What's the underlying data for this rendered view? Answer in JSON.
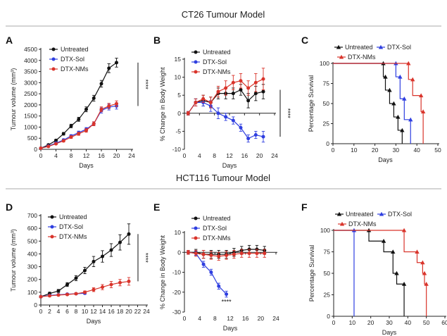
{
  "sections": [
    {
      "title": "CT26 Tumour Model"
    },
    {
      "title": "HCT116 Tumour Model"
    }
  ],
  "colors": {
    "untreated": "#111111",
    "dtx_sol": "#2f3fe0",
    "dtx_nms": "#d9342b",
    "axis": "#222222"
  },
  "chart_data": [
    {
      "panel": "A",
      "type": "line",
      "xlabel": "Days",
      "ylabel": "Tumour volume (mm³)",
      "xlim": [
        0,
        24
      ],
      "ylim": [
        0,
        4500
      ],
      "xticks": [
        "0",
        "4",
        "8",
        "12",
        "16",
        "20",
        "24"
      ],
      "yticks": [
        "0",
        "500",
        "1000",
        "1500",
        "2000",
        "2500",
        "3000",
        "3500",
        "4000",
        "4500"
      ],
      "x": [
        0,
        2,
        4,
        6,
        8,
        10,
        12,
        14,
        16,
        18,
        20
      ],
      "series": [
        {
          "name": "Untreated",
          "key": "untreated",
          "marker": "circle",
          "values": [
            50,
            200,
            400,
            700,
            1050,
            1350,
            1800,
            2300,
            2950,
            3650,
            3900
          ],
          "errors": [
            30,
            40,
            50,
            60,
            80,
            90,
            110,
            130,
            150,
            200,
            200
          ]
        },
        {
          "name": "DTX-Sol",
          "key": "dtx_sol",
          "marker": "circle",
          "values": [
            50,
            150,
            280,
            420,
            600,
            750,
            900,
            1150,
            1750,
            1900,
            1950
          ],
          "errors": [
            20,
            30,
            40,
            50,
            60,
            70,
            80,
            90,
            120,
            130,
            140
          ]
        },
        {
          "name": "DTX-NMs",
          "key": "dtx_nms",
          "marker": "circle",
          "values": [
            50,
            130,
            250,
            380,
            550,
            700,
            850,
            1150,
            1800,
            1950,
            2050
          ],
          "errors": [
            20,
            30,
            40,
            50,
            60,
            70,
            80,
            90,
            110,
            120,
            130
          ]
        }
      ],
      "significance": "****"
    },
    {
      "panel": "B",
      "type": "line",
      "xlabel": "Days",
      "ylabel": "% Change in Body Weight",
      "xlim": [
        0,
        24
      ],
      "ylim": [
        -10,
        15
      ],
      "xticks": [
        "0",
        "4",
        "8",
        "12",
        "16",
        "20",
        "24"
      ],
      "yticks": [
        "-10",
        "-5",
        "0",
        "5",
        "10",
        "15"
      ],
      "x": [
        1,
        3,
        5,
        7,
        9,
        11,
        13,
        15,
        17,
        19,
        21
      ],
      "series": [
        {
          "name": "Untreated",
          "key": "untreated",
          "marker": "circle",
          "values": [
            0,
            3,
            3.5,
            3,
            5.5,
            5.5,
            5.5,
            6.5,
            3.5,
            5.5,
            6
          ],
          "errors": [
            0.5,
            1,
            1.5,
            1.5,
            1.5,
            1.5,
            1.5,
            1.5,
            2,
            2,
            2
          ]
        },
        {
          "name": "DTX-Sol",
          "key": "dtx_sol",
          "marker": "circle",
          "values": [
            0,
            3,
            3,
            2,
            0,
            -1,
            -2,
            -4,
            -7,
            -6,
            -6.5
          ],
          "errors": [
            0.5,
            1,
            1,
            1.5,
            1.5,
            1,
            1,
            1,
            1,
            1,
            1.5
          ]
        },
        {
          "name": "DTX-NMs",
          "key": "dtx_nms",
          "marker": "circle",
          "values": [
            0,
            3,
            4,
            3,
            6,
            7,
            8.5,
            9,
            7,
            8.5,
            9.5
          ],
          "errors": [
            0.5,
            1,
            1,
            1.5,
            1.5,
            2,
            2,
            2,
            2,
            2.5,
            3
          ]
        }
      ],
      "significance": "****"
    },
    {
      "panel": "C",
      "type": "line",
      "style": "step",
      "xlabel": "Days",
      "ylabel": "Percentage Survival",
      "xlim": [
        0,
        50
      ],
      "ylim": [
        0,
        100
      ],
      "xticks": [
        "0",
        "10",
        "20",
        "30",
        "40",
        "50"
      ],
      "yticks": [
        "0",
        "25",
        "50",
        "75",
        "100"
      ],
      "series": [
        {
          "name": "Untreated",
          "key": "untreated",
          "marker": "triangle",
          "x": [
            0,
            24,
            25,
            27,
            29,
            31,
            33
          ],
          "values": [
            100,
            83.3,
            66.7,
            50,
            33.3,
            16.7,
            0
          ]
        },
        {
          "name": "DTX-Sol",
          "key": "dtx_sol",
          "marker": "triangle",
          "x": [
            0,
            30,
            32,
            34,
            37
          ],
          "values": [
            100,
            83.3,
            56,
            30,
            0
          ]
        },
        {
          "name": "DTX-NMs",
          "key": "dtx_nms",
          "marker": "triangle",
          "x": [
            0,
            36,
            38,
            42,
            43
          ],
          "values": [
            100,
            80,
            60,
            40,
            0
          ]
        }
      ]
    },
    {
      "panel": "D",
      "type": "line",
      "xlabel": "Days",
      "ylabel": "Tumour volume (mm³)",
      "xlim": [
        0,
        24
      ],
      "ylim": [
        0,
        700
      ],
      "xticks": [
        "0",
        "2",
        "4",
        "6",
        "8",
        "10",
        "12",
        "14",
        "16",
        "18",
        "20",
        "22",
        "24"
      ],
      "yticks": [
        "0",
        "100",
        "200",
        "300",
        "400",
        "500",
        "600",
        "700"
      ],
      "x": [
        0,
        1,
        3,
        5,
        7,
        9,
        11,
        13,
        15,
        17,
        19,
        20
      ],
      "series": [
        {
          "name": "Untreated",
          "key": "untreated",
          "marker": "circle",
          "x": [
            0,
            2,
            4,
            6,
            8,
            10,
            12,
            14,
            16,
            18,
            20
          ],
          "values": [
            65,
            90,
            110,
            160,
            210,
            270,
            340,
            380,
            430,
            490,
            555
          ],
          "errors": [
            8,
            10,
            12,
            15,
            20,
            25,
            40,
            45,
            50,
            60,
            80
          ]
        },
        {
          "name": "DTX-Sol",
          "key": "dtx_sol",
          "marker": "circle",
          "x": [
            0,
            2,
            4,
            6,
            8,
            10
          ],
          "values": [
            65,
            75,
            80,
            85,
            88,
            92
          ],
          "errors": [
            5,
            5,
            6,
            6,
            7,
            8
          ]
        },
        {
          "name": "DTX-NMs",
          "key": "dtx_nms",
          "marker": "circle",
          "x": [
            0,
            2,
            4,
            6,
            8,
            10,
            12,
            14,
            16,
            18,
            20
          ],
          "values": [
            65,
            72,
            78,
            82,
            88,
            100,
            120,
            140,
            160,
            175,
            185
          ],
          "errors": [
            5,
            5,
            6,
            6,
            7,
            10,
            15,
            20,
            25,
            25,
            30
          ]
        }
      ],
      "significance": "****"
    },
    {
      "panel": "E",
      "type": "line",
      "xlabel": "Days",
      "ylabel": "% Change in Body Weight",
      "xlim": [
        0,
        24
      ],
      "ylim": [
        -30,
        10
      ],
      "xticks": [
        "0",
        "4",
        "8",
        "12",
        "16",
        "20",
        "24"
      ],
      "yticks": [
        "-30",
        "-20",
        "-10",
        "0",
        "10"
      ],
      "series": [
        {
          "name": "Untreated",
          "key": "untreated",
          "marker": "circle",
          "x": [
            1,
            3,
            5,
            7,
            9,
            11,
            13,
            15,
            17,
            19,
            21
          ],
          "values": [
            0,
            0,
            -1,
            -1,
            -1,
            -1,
            0,
            1,
            1.5,
            1.5,
            1
          ],
          "errors": [
            1,
            1.5,
            2,
            2,
            2,
            2,
            2,
            2,
            2,
            2,
            2
          ]
        },
        {
          "name": "DTX-Sol",
          "key": "dtx_sol",
          "marker": "circle",
          "x": [
            1,
            3,
            5,
            7,
            9,
            11
          ],
          "values": [
            0,
            -0.5,
            -6,
            -10,
            -17,
            -21
          ],
          "errors": [
            0.5,
            1,
            1.5,
            1.5,
            1.5,
            1.5
          ]
        },
        {
          "name": "DTX-NMs",
          "key": "dtx_nms",
          "marker": "circle",
          "x": [
            1,
            3,
            5,
            7,
            9,
            11,
            13,
            15,
            17,
            19,
            21
          ],
          "values": [
            0,
            -0.5,
            -1,
            -1.5,
            -2,
            -1.5,
            -1,
            -0.5,
            -0.5,
            -0.5,
            -0.5
          ],
          "errors": [
            1,
            1.5,
            2,
            2,
            2,
            2,
            2,
            2,
            2,
            2,
            2
          ]
        }
      ],
      "significance": "****"
    },
    {
      "panel": "F",
      "type": "line",
      "style": "step",
      "xlabel": "Days",
      "ylabel": "Percentage Survival",
      "xlim": [
        0,
        60
      ],
      "ylim": [
        0,
        100
      ],
      "xticks": [
        "0",
        "10",
        "20",
        "30",
        "40",
        "50",
        "60"
      ],
      "yticks": [
        "0",
        "25",
        "50",
        "75",
        "100"
      ],
      "series": [
        {
          "name": "Untreated",
          "key": "untreated",
          "marker": "triangle",
          "x": [
            0,
            19,
            27,
            32,
            34,
            38
          ],
          "values": [
            100,
            87.5,
            75,
            50,
            37.5,
            0
          ]
        },
        {
          "name": "DTX-Sol",
          "key": "dtx_sol",
          "marker": "triangle",
          "x": [
            0,
            11
          ],
          "values": [
            100,
            0
          ]
        },
        {
          "name": "DTX-NMs",
          "key": "dtx_nms",
          "marker": "triangle",
          "x": [
            0,
            38,
            45,
            48,
            49,
            50
          ],
          "values": [
            100,
            75,
            62.5,
            50,
            37.5,
            0
          ]
        }
      ]
    }
  ]
}
